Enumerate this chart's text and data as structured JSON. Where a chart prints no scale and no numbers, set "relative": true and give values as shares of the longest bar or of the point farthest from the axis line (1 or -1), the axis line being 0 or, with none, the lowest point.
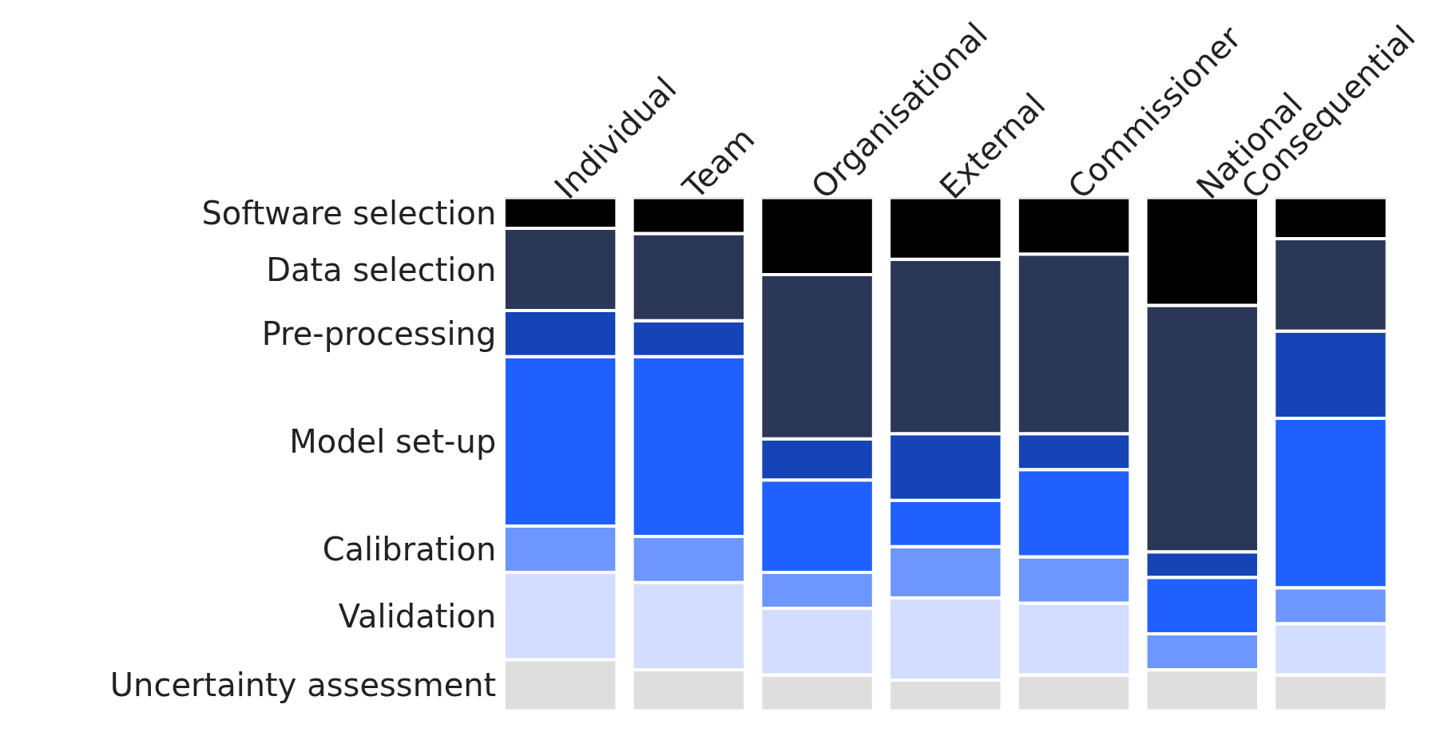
{
  "chart_data": {
    "type": "bar",
    "stacked": true,
    "relative": true,
    "grid": false,
    "categories": [
      "Individual",
      "Team",
      "Organisational",
      "External",
      "Commissioner",
      "National",
      "Consequential"
    ],
    "series": [
      {
        "name": "Uncertainty assessment",
        "color": "#dedede",
        "values": [
          0.1,
          0.08,
          0.07,
          0.06,
          0.07,
          0.08,
          0.07
        ]
      },
      {
        "name": "Validation",
        "color": "#d2ddff",
        "values": [
          0.17,
          0.17,
          0.13,
          0.16,
          0.14,
          0,
          0.1
        ]
      },
      {
        "name": "Calibration",
        "color": "#6e96ff",
        "values": [
          0.09,
          0.09,
          0.07,
          0.1,
          0.09,
          0.07,
          0.07
        ]
      },
      {
        "name": "Model set-up",
        "color": "#2060ff",
        "values": [
          0.33,
          0.35,
          0.18,
          0.09,
          0.17,
          0.11,
          0.33
        ]
      },
      {
        "name": "Pre-processing",
        "color": "#1643b5",
        "values": [
          0.09,
          0.07,
          0.08,
          0.13,
          0.07,
          0.05,
          0.17
        ]
      },
      {
        "name": "Data selection",
        "color": "#2b3756",
        "values": [
          0.16,
          0.17,
          0.32,
          0.34,
          0.35,
          0.48,
          0.18
        ]
      },
      {
        "name": "Software selection",
        "color": "#000000",
        "values": [
          0.06,
          0.07,
          0.15,
          0.12,
          0.11,
          0.21,
          0.08
        ]
      }
    ]
  }
}
